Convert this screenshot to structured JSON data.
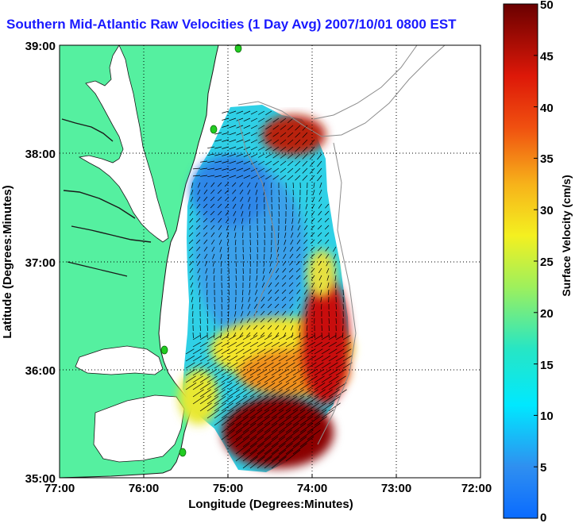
{
  "title": "Southern Mid-Atlantic Raw Velocities (1 Day Avg) 2007/10/01 0800 EST",
  "x_axis": {
    "label": "Longitude (Degrees:Minutes)",
    "ticks": [
      "77:00",
      "76:00",
      "75:00",
      "74:00",
      "73:00",
      "72:00"
    ]
  },
  "y_axis": {
    "label": "Latitude (Degrees:Minutes)",
    "ticks": [
      "39:00",
      "38:00",
      "37:00",
      "36:00",
      "35:00"
    ]
  },
  "colorbar": {
    "label": "Surface Velocity (cm/s)",
    "ticks": [
      "50",
      "45",
      "40",
      "35",
      "30",
      "25",
      "20",
      "15",
      "10",
      "5",
      "0"
    ]
  },
  "colors": {
    "land": "#55f0a0",
    "coast_outline": "#1a1a1a",
    "bathymetry": "#8c8c8c",
    "grid": "#000000",
    "station_marker": "#22cc22",
    "title": "#1a1aff"
  }
}
